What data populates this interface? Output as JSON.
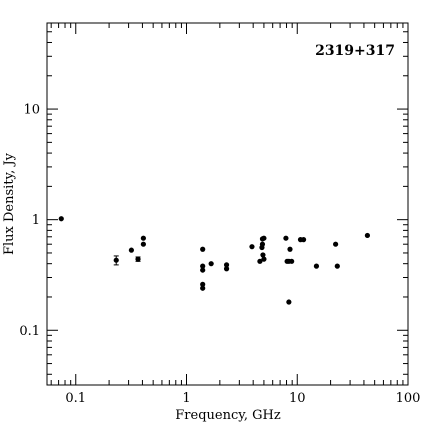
{
  "chart_data": {
    "type": "scatter",
    "title": "2319+317",
    "xlabel": "Frequency, GHz",
    "ylabel": "Flux Density, Jy",
    "xscale": "log",
    "yscale": "log",
    "xlim": [
      0.055,
      100
    ],
    "ylim": [
      0.032,
      60
    ],
    "x_ticks": [
      {
        "value": 0.1,
        "label": "0.1"
      },
      {
        "value": 1,
        "label": "1"
      },
      {
        "value": 10,
        "label": "10"
      },
      {
        "value": 100,
        "label": "100"
      }
    ],
    "y_ticks": [
      {
        "value": 0.1,
        "label": "0.1"
      },
      {
        "value": 1,
        "label": "1"
      },
      {
        "value": 10,
        "label": "10"
      }
    ],
    "grid": false,
    "legend": "none",
    "points": [
      {
        "x": 0.074,
        "y": 1.02
      },
      {
        "x": 0.232,
        "y": 0.43,
        "err": 0.04
      },
      {
        "x": 0.318,
        "y": 0.53
      },
      {
        "x": 0.365,
        "y": 0.44,
        "err": 0.02
      },
      {
        "x": 0.408,
        "y": 0.6
      },
      {
        "x": 0.408,
        "y": 0.68
      },
      {
        "x": 1.4,
        "y": 0.54
      },
      {
        "x": 1.4,
        "y": 0.38
      },
      {
        "x": 1.4,
        "y": 0.35
      },
      {
        "x": 1.4,
        "y": 0.26
      },
      {
        "x": 1.4,
        "y": 0.24
      },
      {
        "x": 1.67,
        "y": 0.4
      },
      {
        "x": 2.3,
        "y": 0.39
      },
      {
        "x": 2.3,
        "y": 0.36
      },
      {
        "x": 3.9,
        "y": 0.57
      },
      {
        "x": 4.6,
        "y": 0.42
      },
      {
        "x": 4.8,
        "y": 0.56
      },
      {
        "x": 4.85,
        "y": 0.67
      },
      {
        "x": 4.85,
        "y": 0.6
      },
      {
        "x": 4.9,
        "y": 0.48
      },
      {
        "x": 5.0,
        "y": 0.44
      },
      {
        "x": 5.0,
        "y": 0.68
      },
      {
        "x": 7.9,
        "y": 0.68
      },
      {
        "x": 8.1,
        "y": 0.42
      },
      {
        "x": 8.4,
        "y": 0.42
      },
      {
        "x": 8.4,
        "y": 0.18
      },
      {
        "x": 8.6,
        "y": 0.54
      },
      {
        "x": 8.9,
        "y": 0.42
      },
      {
        "x": 10.7,
        "y": 0.66
      },
      {
        "x": 11.4,
        "y": 0.66
      },
      {
        "x": 14.9,
        "y": 0.38
      },
      {
        "x": 22.2,
        "y": 0.6
      },
      {
        "x": 23.0,
        "y": 0.38
      },
      {
        "x": 43.0,
        "y": 0.72
      }
    ],
    "colors": {
      "marker": "#000000",
      "axes": "#000000",
      "background": "#ffffff"
    }
  }
}
